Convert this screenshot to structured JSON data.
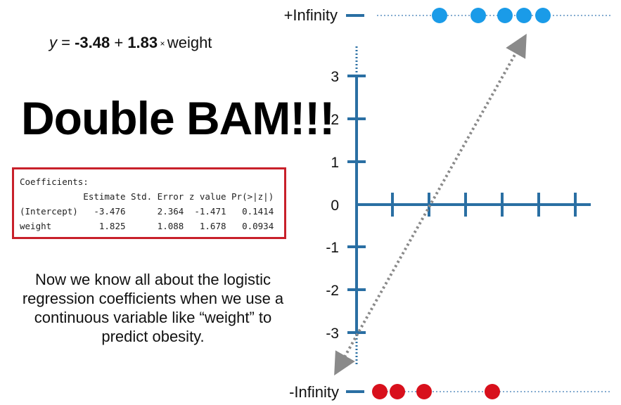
{
  "equation": {
    "lhs": "y",
    "equals": " = ",
    "intercept": "-3.48",
    "plus": " + ",
    "slope": "1.83",
    "times": " × ",
    "variable": "weight"
  },
  "headline": "Double BAM!!!",
  "coefficients_table": {
    "title": "Coefficients:",
    "header": "            Estimate Std. Error z value Pr(>|z|)",
    "rows": [
      "(Intercept)   -3.476      2.364  -1.471   0.1414",
      "weight         1.825      1.088   1.678   0.0934"
    ]
  },
  "caption": "Now we know all about the logistic regression coefficients when we use a continuous variable like “weight” to predict obesity.",
  "plot": {
    "top_label": "+Infinity",
    "bottom_label": "-Infinity",
    "y_ticks": [
      "3",
      "2",
      "1",
      "0",
      "-1",
      "-2",
      "-3"
    ],
    "axis_color": "#2a6fa3",
    "top_dot_color": "#1a9be8",
    "bottom_dot_color": "#d8101c",
    "fit_line_color": "#8a8a8a",
    "top_dots_count": 5,
    "bottom_dots_count": 4
  }
}
